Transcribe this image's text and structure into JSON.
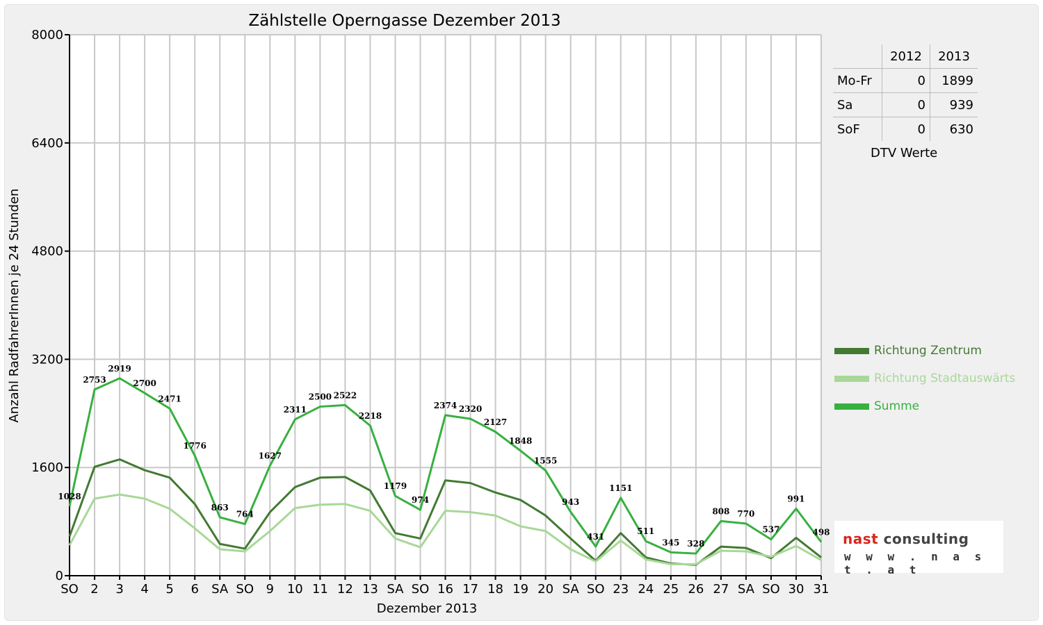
{
  "dtv_table": {
    "columns": [
      "",
      "2012",
      "2013"
    ],
    "rows": [
      {
        "label": "Mo-Fr",
        "v2012": "0",
        "v2013": "1899"
      },
      {
        "label": "Sa",
        "v2012": "0",
        "v2013": "939"
      },
      {
        "label": "SoF",
        "v2012": "0",
        "v2013": "630"
      }
    ],
    "caption": "DTV Werte"
  },
  "logo": {
    "brand_first": "nast",
    "brand_second": " consulting",
    "url": "w w w . n a s t . a t",
    "brand_color": "#d9261c",
    "brand_second_color": "#444444"
  },
  "chart_data": {
    "type": "line",
    "title": "Zählstelle Operngasse Dezember 2013",
    "xlabel": "Dezember 2013",
    "ylabel": "Anzahl RadfahrerInnen je 24 Stunden",
    "ylim": [
      0,
      8000
    ],
    "yticks": [
      0,
      1600,
      3200,
      4800,
      6400,
      8000
    ],
    "grid": true,
    "legend_position": "right",
    "categories": [
      "SO",
      "2",
      "3",
      "4",
      "5",
      "6",
      "SA",
      "SO",
      "9",
      "10",
      "11",
      "12",
      "13",
      "SA",
      "SO",
      "16",
      "17",
      "18",
      "19",
      "20",
      "SA",
      "SO",
      "23",
      "24",
      "25",
      "26",
      "27",
      "SA",
      "SO",
      "30",
      "31"
    ],
    "category_colors": [
      "#e00000",
      "#000000",
      "#000000",
      "#000000",
      "#000000",
      "#000000",
      "#000000",
      "#e00000",
      "#000000",
      "#000000",
      "#000000",
      "#000000",
      "#000000",
      "#000000",
      "#e00000",
      "#000000",
      "#000000",
      "#000000",
      "#000000",
      "#000000",
      "#000000",
      "#e00000",
      "#000000",
      "#000000",
      "#e00000",
      "#e00000",
      "#000000",
      "#000000",
      "#e00000",
      "#000000",
      "#000000"
    ],
    "series": [
      {
        "name": "Richtung Zentrum",
        "color": "#427a32",
        "values": [
          580,
          1610,
          1720,
          1560,
          1450,
          1060,
          470,
          400,
          940,
          1310,
          1450,
          1460,
          1260,
          630,
          550,
          1410,
          1370,
          1230,
          1120,
          890,
          550,
          220,
          630,
          270,
          180,
          160,
          430,
          410,
          260,
          560,
          270
        ]
      },
      {
        "name": "Richtung Stadtauswärts",
        "color": "#a8d898",
        "values": [
          450,
          1140,
          1200,
          1140,
          990,
          700,
          390,
          360,
          660,
          1000,
          1050,
          1060,
          960,
          550,
          420,
          960,
          940,
          890,
          730,
          660,
          390,
          210,
          520,
          240,
          170,
          170,
          370,
          360,
          280,
          440,
          230
        ]
      },
      {
        "name": "Summe",
        "color": "#38b040",
        "labels": true,
        "values": [
          1028,
          2753,
          2919,
          2700,
          2471,
          1776,
          863,
          764,
          1627,
          2311,
          2500,
          2522,
          2218,
          1179,
          974,
          2374,
          2320,
          2127,
          1848,
          1555,
          943,
          431,
          1151,
          511,
          345,
          328,
          808,
          770,
          537,
          991,
          498
        ]
      }
    ]
  }
}
